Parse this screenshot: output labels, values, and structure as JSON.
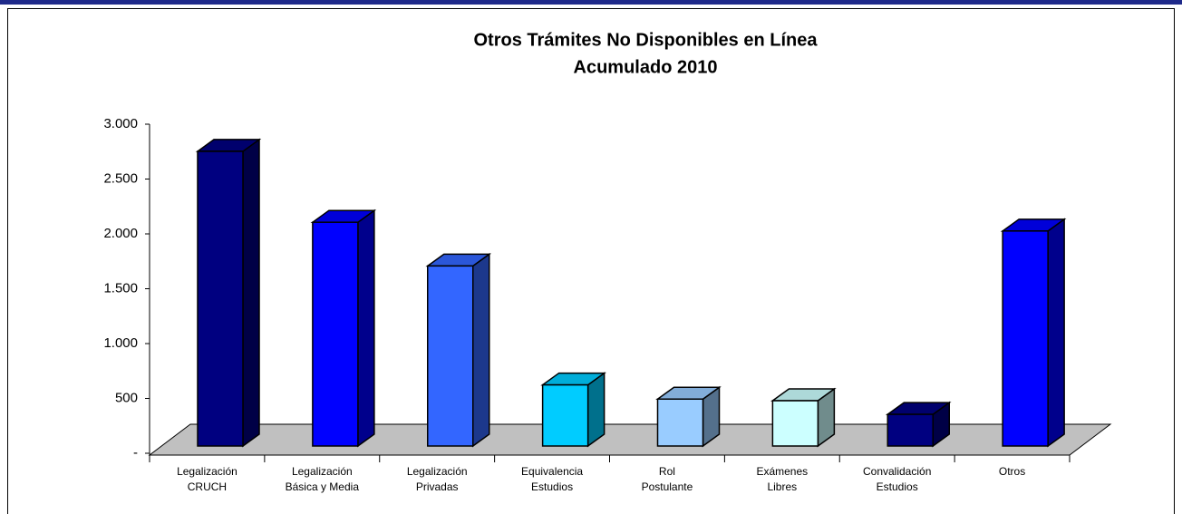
{
  "chart_data": {
    "type": "bar3d",
    "title": "Otros Trámites No Disponibles en Línea",
    "subtitle": "Acumulado 2010",
    "categories": [
      [
        "Legalización",
        "CRUCH"
      ],
      [
        "Legalización",
        "Básica y Media"
      ],
      [
        "Legalización",
        "Privadas"
      ],
      [
        "Equivalencia",
        "Estudios"
      ],
      [
        "Rol",
        "Postulante"
      ],
      [
        "Exámenes",
        "Libres"
      ],
      [
        "Convalidación",
        "Estudios"
      ],
      [
        "Otros"
      ]
    ],
    "values": [
      2700,
      2050,
      1650,
      560,
      430,
      415,
      290,
      1970
    ],
    "colors": [
      "#000080",
      "#0000ff",
      "#3366ff",
      "#00ccff",
      "#99ccff",
      "#ccffff",
      "#000080",
      "#0000ff"
    ],
    "ylim": [
      0,
      3000
    ],
    "yticks": [
      {
        "value": 0,
        "label": "-"
      },
      500,
      {
        "value": 1000,
        "label": "1.000"
      },
      {
        "value": 1500,
        "label": "1.500"
      },
      {
        "value": 2000,
        "label": "2.000"
      },
      {
        "value": 2500,
        "label": "2.500"
      },
      {
        "value": 3000,
        "label": "3.000"
      }
    ],
    "grid": false
  }
}
